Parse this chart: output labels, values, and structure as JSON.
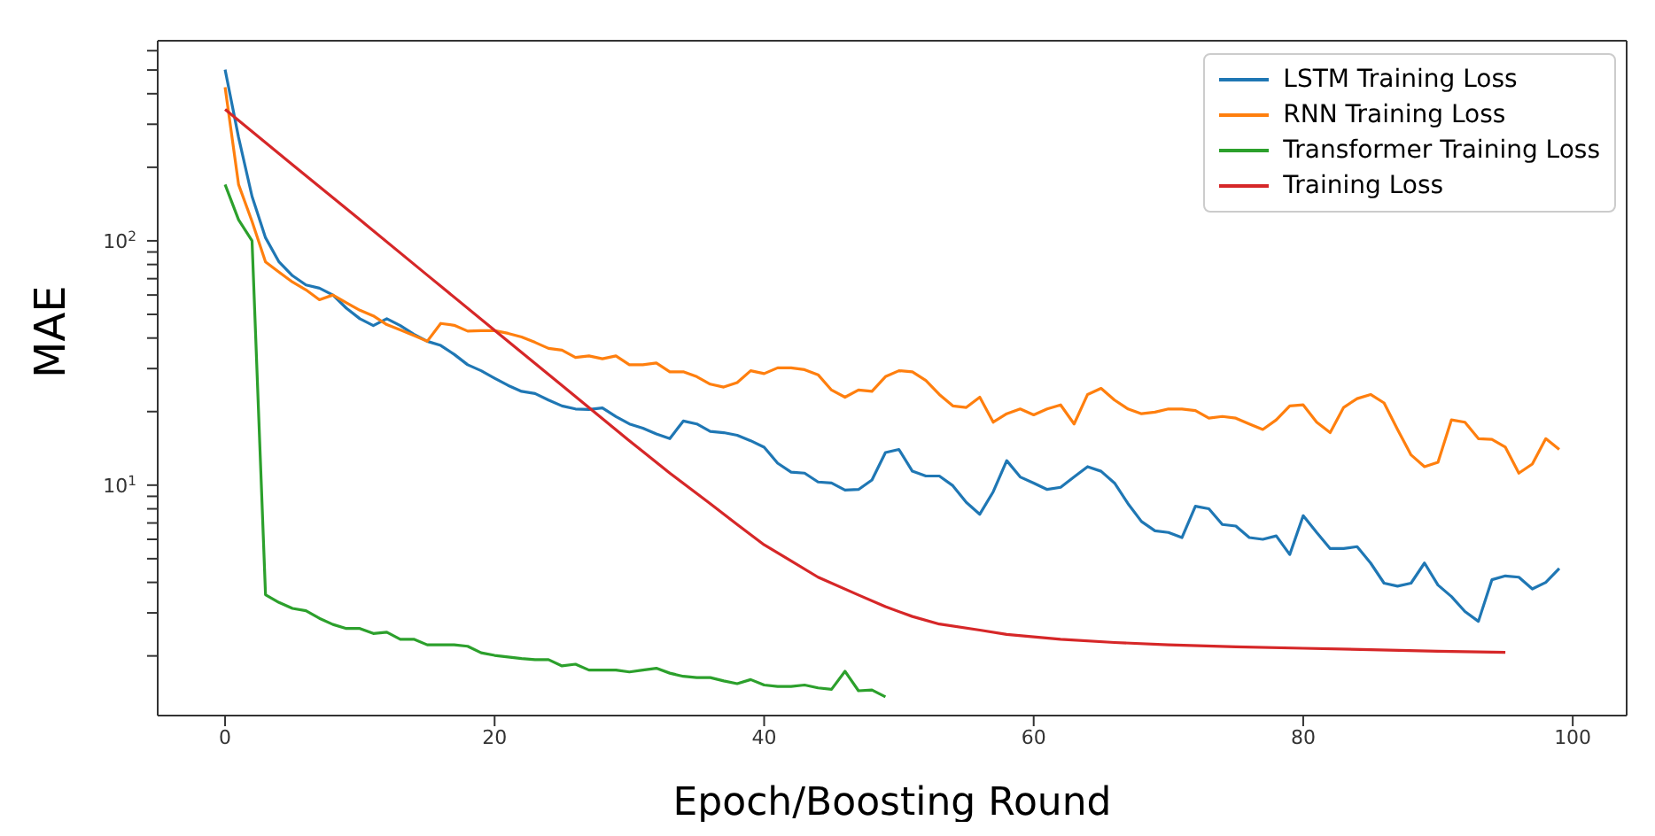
{
  "chart_data": {
    "type": "line",
    "xlabel": "Epoch/Boosting Round",
    "ylabel": "MAE",
    "log": true,
    "grid": false,
    "legend": "top right",
    "marker": "none",
    "line_style": "solid",
    "xlim": [
      -5,
      104
    ],
    "xticks": [
      0,
      20,
      40,
      60,
      80,
      100
    ],
    "ylim": [
      1.14,
      659
    ],
    "yticks": [
      {
        "value": 2,
        "label": null
      },
      {
        "value": 3,
        "label": null
      },
      {
        "value": 4,
        "label": null
      },
      {
        "value": 5,
        "label": null
      },
      {
        "value": 6,
        "label": null
      },
      {
        "value": 7,
        "label": null
      },
      {
        "value": 8,
        "label": null
      },
      {
        "value": 9,
        "label": null
      },
      {
        "value": 10,
        "label": "10$^{1}$"
      },
      {
        "value": 20,
        "label": null
      },
      {
        "value": 30,
        "label": null
      },
      {
        "value": 40,
        "label": null
      },
      {
        "value": 50,
        "label": null
      },
      {
        "value": 60,
        "label": null
      },
      {
        "value": 70,
        "label": null
      },
      {
        "value": 80,
        "label": null
      },
      {
        "value": 90,
        "label": null
      },
      {
        "value": 100,
        "label": "10$^{2}$"
      },
      {
        "value": 200,
        "label": null
      },
      {
        "value": 300,
        "label": null
      },
      {
        "value": 400,
        "label": null
      },
      {
        "value": 500,
        "label": null
      },
      {
        "value": 600,
        "label": null
      }
    ],
    "series": [
      {
        "name": "LSTM Training Loss",
        "color": "#1f77b4",
        "x": [
          0,
          1,
          2,
          3,
          4,
          5,
          6,
          7,
          8,
          9,
          10,
          11,
          12,
          13,
          14,
          15,
          16,
          17,
          18,
          19,
          20,
          21,
          22,
          23,
          24,
          25,
          26,
          27,
          28,
          29,
          30,
          31,
          32,
          33,
          34,
          35,
          36,
          37,
          38,
          39,
          40,
          41,
          42,
          43,
          44,
          45,
          46,
          47,
          48,
          49,
          50,
          51,
          52,
          53,
          54,
          55,
          56,
          57,
          58,
          59,
          60,
          61,
          62,
          63,
          64,
          65,
          66,
          67,
          68,
          69,
          70,
          71,
          72,
          73,
          74,
          75,
          76,
          77,
          78,
          79,
          80,
          81,
          82,
          83,
          84,
          85,
          86,
          87,
          88,
          89,
          90,
          91,
          92,
          93,
          94,
          95,
          96,
          97,
          98,
          99
        ],
        "values": [
          502,
          265,
          152,
          103,
          82,
          72,
          66,
          64,
          60,
          53,
          48,
          45,
          48,
          45,
          41.5,
          38.8,
          37.3,
          34.3,
          31.1,
          29.4,
          27.4,
          25.6,
          24.2,
          23.7,
          22.3,
          21.1,
          20.5,
          20.4,
          20.7,
          19.1,
          17.8,
          17.1,
          16.2,
          15.5,
          18.3,
          17.8,
          16.6,
          16.4,
          16.0,
          15.2,
          14.3,
          12.3,
          11.3,
          11.2,
          10.3,
          10.2,
          9.55,
          9.6,
          10.5,
          13.6,
          14.0,
          11.4,
          10.9,
          10.9,
          9.95,
          8.5,
          7.6,
          9.4,
          12.6,
          10.8,
          10.2,
          9.6,
          9.8,
          10.8,
          11.9,
          11.4,
          10.2,
          8.4,
          7.1,
          6.5,
          6.4,
          6.1,
          8.2,
          8.0,
          6.9,
          6.8,
          6.1,
          6.0,
          6.2,
          5.2,
          7.5,
          6.4,
          5.5,
          5.5,
          5.6,
          4.8,
          3.97,
          3.86,
          3.97,
          4.8,
          3.9,
          3.5,
          3.04,
          2.77,
          4.1,
          4.25,
          4.2,
          3.76,
          4.0,
          4.56
        ]
      },
      {
        "name": "RNN Training Loss",
        "color": "#ff7f0e",
        "x": [
          0,
          1,
          2,
          3,
          4,
          5,
          6,
          7,
          8,
          9,
          10,
          11,
          12,
          13,
          14,
          15,
          16,
          17,
          18,
          19,
          20,
          21,
          22,
          23,
          24,
          25,
          26,
          27,
          28,
          29,
          30,
          31,
          32,
          33,
          34,
          35,
          36,
          37,
          38,
          39,
          40,
          41,
          42,
          43,
          44,
          45,
          46,
          47,
          48,
          49,
          50,
          51,
          52,
          53,
          54,
          55,
          56,
          57,
          58,
          59,
          60,
          61,
          62,
          63,
          64,
          65,
          66,
          67,
          68,
          69,
          70,
          71,
          72,
          73,
          74,
          75,
          76,
          77,
          78,
          79,
          80,
          81,
          82,
          83,
          84,
          85,
          86,
          87,
          88,
          89,
          90,
          91,
          92,
          93,
          94,
          95,
          96,
          97,
          98,
          99
        ],
        "values": [
          425,
          170,
          120,
          82,
          74.5,
          67.8,
          63,
          57.4,
          60,
          55.8,
          52,
          49.3,
          45.4,
          43.2,
          41,
          38.8,
          45.9,
          45.1,
          42.7,
          42.9,
          42.9,
          41.8,
          40.4,
          38.4,
          36.3,
          35.7,
          33.3,
          33.8,
          32.9,
          33.8,
          31.1,
          31.1,
          31.6,
          29.1,
          29.1,
          27.8,
          25.9,
          25.2,
          26.3,
          29.4,
          28.6,
          30.2,
          30.2,
          29.7,
          28.3,
          24.5,
          22.9,
          24.5,
          24.2,
          27.8,
          29.4,
          29.1,
          26.8,
          23.5,
          21.1,
          20.8,
          22.9,
          18.1,
          19.6,
          20.5,
          19.4,
          20.5,
          21.3,
          17.8,
          23.5,
          24.9,
          22.3,
          20.5,
          19.6,
          19.9,
          20.5,
          20.5,
          20.2,
          18.8,
          19.1,
          18.8,
          17.8,
          16.9,
          18.5,
          21.1,
          21.3,
          18.1,
          16.4,
          20.8,
          22.6,
          23.5,
          21.7,
          16.9,
          13.3,
          11.9,
          12.4,
          18.5,
          18.1,
          15.5,
          15.4,
          14.3,
          11.2,
          12.2,
          15.5,
          14.0
        ]
      },
      {
        "name": "Transformer Training Loss",
        "color": "#2ca02c",
        "x": [
          0,
          1,
          2,
          3,
          4,
          5,
          6,
          7,
          8,
          9,
          10,
          11,
          12,
          13,
          14,
          15,
          16,
          17,
          18,
          19,
          20,
          21,
          22,
          23,
          24,
          25,
          26,
          27,
          28,
          29,
          30,
          31,
          32,
          33,
          34,
          35,
          36,
          37,
          38,
          39,
          40,
          41,
          42,
          43,
          44,
          45,
          46,
          47,
          48,
          49
        ],
        "values": [
          170,
          122,
          100,
          3.56,
          3.31,
          3.13,
          3.06,
          2.85,
          2.69,
          2.59,
          2.59,
          2.47,
          2.5,
          2.34,
          2.34,
          2.22,
          2.22,
          2.22,
          2.19,
          2.06,
          2.01,
          1.98,
          1.95,
          1.93,
          1.93,
          1.82,
          1.85,
          1.75,
          1.75,
          1.75,
          1.72,
          1.75,
          1.78,
          1.7,
          1.65,
          1.63,
          1.63,
          1.58,
          1.54,
          1.6,
          1.52,
          1.5,
          1.5,
          1.52,
          1.48,
          1.46,
          1.73,
          1.44,
          1.45,
          1.36
        ]
      },
      {
        "name": "Training Loss",
        "color": "#d62728",
        "x": [
          0,
          5,
          10,
          15,
          20,
          25,
          30,
          33,
          36,
          38,
          40,
          42,
          44,
          47,
          49,
          51,
          53,
          56,
          58,
          62,
          66,
          70,
          75,
          80,
          85,
          90,
          95
        ],
        "values": [
          345,
          205,
          122,
          72.4,
          43,
          25.6,
          15.2,
          11.2,
          8.4,
          6.9,
          5.7,
          4.9,
          4.2,
          3.55,
          3.18,
          2.9,
          2.7,
          2.55,
          2.45,
          2.34,
          2.27,
          2.22,
          2.18,
          2.15,
          2.12,
          2.09,
          2.07
        ]
      }
    ]
  }
}
